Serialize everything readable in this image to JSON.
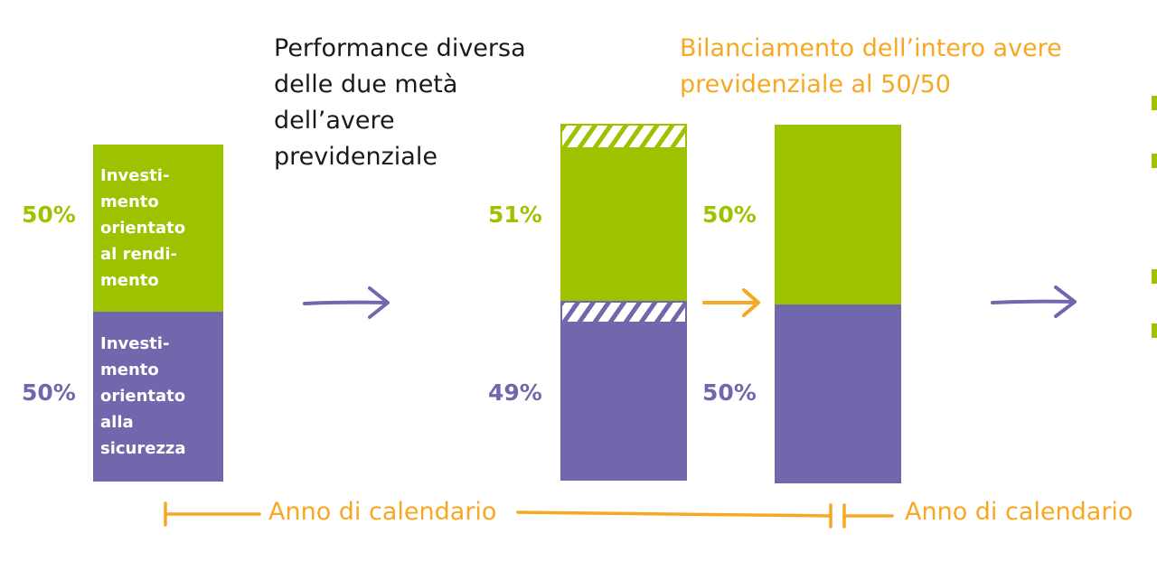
{
  "colors": {
    "green": "#9dc300",
    "purple": "#7167ad",
    "orange": "#f7a823",
    "dark": "#1a1a1a"
  },
  "stage1": {
    "top": {
      "percent": "50%",
      "label": "Investi-\nmento\norientato\nal rendi-\nmento"
    },
    "bottom": {
      "percent": "50%",
      "label": "Investi-\nmento\norientato\nalla\nsicurezza"
    }
  },
  "stage2": {
    "heading": "Performance diversa\ndelle due metà\ndell’avere\nprevidenziale",
    "top": {
      "percent": "51%"
    },
    "bottom": {
      "percent": "49%"
    }
  },
  "stage3": {
    "heading": "Bilanciamento dell’intero avere\nprevidenziale al 50/50",
    "top": {
      "percent": "50%"
    },
    "bottom": {
      "percent": "50%"
    }
  },
  "timeline": {
    "label_1": "Anno di calendario",
    "label_2": "Anno di calendario"
  },
  "icons": {
    "arrow_1": "arrow-right-icon",
    "arrow_2": "arrow-right-icon",
    "arrow_3": "arrow-right-icon"
  }
}
